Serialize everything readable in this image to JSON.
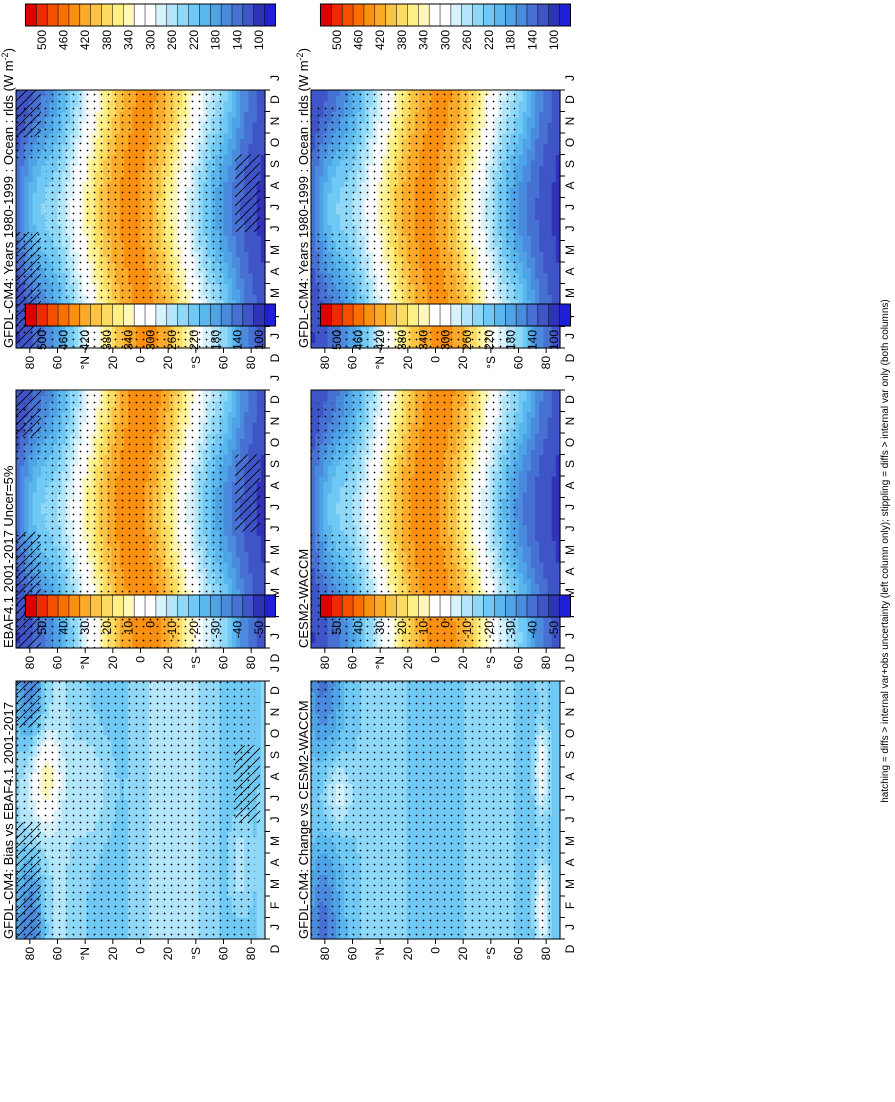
{
  "footnote": "hatching = diffs > internal var+obs uncertainty (left column only); stippling = diffs > internal var only (both columns)",
  "palettes": {
    "abs": [
      "#de0000",
      "#ed2a00",
      "#f44f00",
      "#f87000",
      "#fa8f10",
      "#fbaa2a",
      "#fcc445",
      "#fddc62",
      "#feef86",
      "#fff8b8",
      "#ffffff",
      "#ffffff",
      "#d8f2fd",
      "#b4e6fb",
      "#8fd8f8",
      "#6fc9f4",
      "#5ab7ee",
      "#4ea2e6",
      "#4a8bdd",
      "#4671d2",
      "#3f54c7",
      "#2f33b8",
      "#1f1fd8"
    ],
    "diff": [
      "#de0000",
      "#ed2a00",
      "#f44f00",
      "#f87000",
      "#fa8f10",
      "#fbaa2a",
      "#fcc445",
      "#fddc62",
      "#feef86",
      "#fff8b8",
      "#ffffff",
      "#ffffff",
      "#d8f2fd",
      "#b4e6fb",
      "#8fd8f8",
      "#6fc9f4",
      "#5ab7ee",
      "#4ea2e6",
      "#4a8bdd",
      "#4671d2",
      "#3f54c7",
      "#2f33b8",
      "#1f1fd8"
    ]
  },
  "axes": {
    "month_ticks": [
      "J",
      "F",
      "M",
      "A",
      "M",
      "J",
      "J",
      "A",
      "S",
      "O",
      "N",
      "D",
      "J"
    ],
    "month_end": "D",
    "lat_ticks": [
      "80",
      "60",
      "°N",
      "20",
      "0",
      "20",
      "°S",
      "60",
      "80"
    ]
  },
  "colorbars": {
    "abs_labels": [
      "500",
      "460",
      "420",
      "380",
      "340",
      "300",
      "260",
      "220",
      "180",
      "140",
      "100"
    ],
    "diff_labels": [
      "50",
      "40",
      "30",
      "20",
      "10",
      "0",
      "-10",
      "-20",
      "-30",
      "-40",
      "-50"
    ]
  },
  "chart_data": [
    {
      "type": "heatmap",
      "panel": "top-left",
      "title": "GFDL-CM4: Years 1980-1999 : Ocean : rlds (W m⁻²)",
      "title_main": "GFDL-CM4: Years 1980-1999 : Ocean : rlds (W m",
      "title_sup": "-2",
      "title_end": ")",
      "field": "abs",
      "x_range": [
        0,
        12
      ],
      "y_range": [
        90,
        -90
      ],
      "value_range": [
        80,
        520
      ],
      "colorbar": "abs",
      "hatching": true,
      "stippling": true
    },
    {
      "type": "heatmap",
      "panel": "middle-left",
      "title": "EBAF4.1 2001-2017 Uncer=5%",
      "field": "abs",
      "x_range": [
        0,
        12
      ],
      "y_range": [
        90,
        -90
      ],
      "value_range": [
        80,
        520
      ],
      "colorbar": "abs",
      "hatching": true,
      "stippling": true
    },
    {
      "type": "heatmap",
      "panel": "bottom-left",
      "title": "GFDL-CM4: Bias vs EBAF4.1 2001-2017",
      "field": "bias",
      "x_range": [
        0,
        12
      ],
      "y_range": [
        90,
        -90
      ],
      "value_range": [
        -55,
        55
      ],
      "colorbar": "diff",
      "hatching": true,
      "stippling": true
    },
    {
      "type": "heatmap",
      "panel": "top-right",
      "title": "GFDL-CM4: Years 1980-1999 : Ocean : rlds (W m⁻²)",
      "title_main": "GFDL-CM4: Years 1980-1999 : Ocean : rlds (W m",
      "title_sup": "-2",
      "title_end": ")",
      "field": "abs",
      "x_range": [
        0,
        12
      ],
      "y_range": [
        90,
        -90
      ],
      "value_range": [
        80,
        520
      ],
      "colorbar": "abs",
      "hatching": false,
      "stippling": true
    },
    {
      "type": "heatmap",
      "panel": "middle-right",
      "title": "CESM2-WACCM",
      "field": "abs",
      "x_range": [
        0,
        12
      ],
      "y_range": [
        90,
        -90
      ],
      "value_range": [
        80,
        520
      ],
      "colorbar": "abs",
      "hatching": false,
      "stippling": true
    },
    {
      "type": "heatmap",
      "panel": "bottom-right",
      "title": "GFDL-CM4: Change vs CESM2-WACCM",
      "field": "change",
      "x_range": [
        0,
        12
      ],
      "y_range": [
        90,
        -90
      ],
      "value_range": [
        -55,
        55
      ],
      "colorbar": "diff",
      "hatching": false,
      "stippling": true
    }
  ]
}
